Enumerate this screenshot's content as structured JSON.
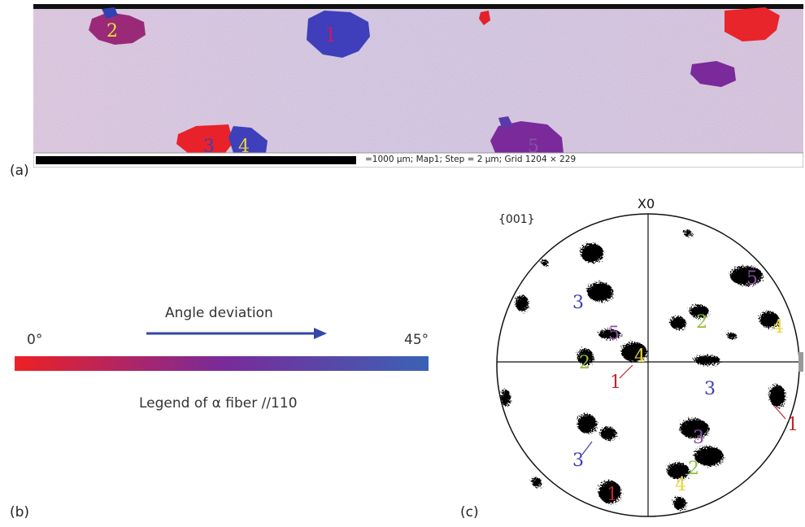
{
  "panels": {
    "a": {
      "label": "(a)",
      "scale_text": "=1000 µm; Map1; Step = 2 µm; Grid 1204 × 229",
      "grain_numbers": [
        {
          "text": "2",
          "color": "#e8e23a"
        },
        {
          "text": "1",
          "color": "#c21e62"
        },
        {
          "text": "3",
          "color": "#3b3fb5"
        },
        {
          "text": "4",
          "color": "#e8d53a"
        },
        {
          "text": "5",
          "color": "#8a4fa8"
        }
      ]
    },
    "b": {
      "label": "(b)",
      "title": "Angle deviation",
      "min_label": "0°",
      "max_label": "45°",
      "caption": "Legend of α fiber //110",
      "colors": {
        "start": "#ee2024",
        "mid": "#7a2a9a",
        "end": "#3a62b5",
        "arrow": "#3347a8"
      }
    },
    "c": {
      "label": "(c)",
      "title": "{001}",
      "axis_label": "X0",
      "pole_labels": [
        {
          "text": "5",
          "color": "#8a4fa8"
        },
        {
          "text": "3",
          "color": "#3b3fb5"
        },
        {
          "text": "2",
          "color": "#8fbf3a"
        },
        {
          "text": "4",
          "color": "#e8d53a"
        },
        {
          "text": "5",
          "color": "#8a4fa8"
        },
        {
          "text": "2",
          "color": "#8fbf3a"
        },
        {
          "text": "4",
          "color": "#e8d53a"
        },
        {
          "text": "1",
          "color": "#c0262c"
        },
        {
          "text": "3",
          "color": "#3b3fb5"
        },
        {
          "text": "1",
          "color": "#c0262c"
        },
        {
          "text": "3",
          "color": "#8a4fa8"
        },
        {
          "text": "3",
          "color": "#3b3fb5"
        },
        {
          "text": "2",
          "color": "#8fbf3a"
        },
        {
          "text": "4",
          "color": "#e8d53a"
        },
        {
          "text": "1",
          "color": "#c0262c"
        }
      ]
    }
  }
}
